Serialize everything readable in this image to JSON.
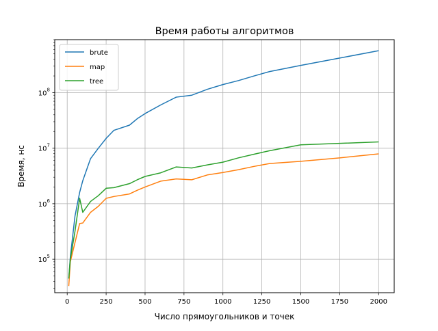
{
  "chart_data": {
    "type": "line",
    "title": "Время работы алгоритмов",
    "xlabel": "Число прямоугольников и точек",
    "ylabel": "Время, нс",
    "yscale": "log",
    "xlim": [
      -80,
      2100
    ],
    "ylim": [
      25000,
      900000000
    ],
    "grid": true,
    "legend_position": "top-left",
    "x_ticks": [
      0,
      250,
      500,
      750,
      1000,
      1250,
      1500,
      1750,
      2000
    ],
    "x_tick_labels": [
      "0",
      "250",
      "500",
      "750",
      "1000",
      "1250",
      "1500",
      "1750",
      "2000"
    ],
    "y_ticks": [
      100000,
      1000000,
      10000000,
      100000000
    ],
    "y_tick_labels": [
      {
        "base": "10",
        "exp": "5"
      },
      {
        "base": "10",
        "exp": "6"
      },
      {
        "base": "10",
        "exp": "7"
      },
      {
        "base": "10",
        "exp": "8"
      }
    ],
    "series": [
      {
        "name": "brute",
        "color": "#1f77b4",
        "points": [
          [
            10,
            45000
          ],
          [
            20,
            110000
          ],
          [
            50,
            600000
          ],
          [
            80,
            1600000
          ],
          [
            100,
            2600000
          ],
          [
            150,
            6500000
          ],
          [
            200,
            10000000
          ],
          [
            250,
            15000000
          ],
          [
            300,
            21000000
          ],
          [
            400,
            26000000
          ],
          [
            450,
            34000000
          ],
          [
            500,
            42000000
          ],
          [
            600,
            60000000
          ],
          [
            700,
            83000000
          ],
          [
            800,
            90000000
          ],
          [
            900,
            115000000
          ],
          [
            1000,
            140000000
          ],
          [
            1100,
            165000000
          ],
          [
            1200,
            200000000
          ],
          [
            1300,
            240000000
          ],
          [
            1500,
            310000000
          ],
          [
            1750,
            420000000
          ],
          [
            2000,
            570000000
          ]
        ]
      },
      {
        "name": "map",
        "color": "#ff7f0e",
        "points": [
          [
            10,
            33000
          ],
          [
            20,
            90000
          ],
          [
            50,
            200000
          ],
          [
            80,
            440000
          ],
          [
            100,
            450000
          ],
          [
            150,
            700000
          ],
          [
            200,
            900000
          ],
          [
            250,
            1250000
          ],
          [
            300,
            1350000
          ],
          [
            400,
            1500000
          ],
          [
            450,
            1750000
          ],
          [
            500,
            2000000
          ],
          [
            600,
            2550000
          ],
          [
            700,
            2800000
          ],
          [
            800,
            2700000
          ],
          [
            900,
            3300000
          ],
          [
            1000,
            3650000
          ],
          [
            1100,
            4100000
          ],
          [
            1200,
            4700000
          ],
          [
            1300,
            5300000
          ],
          [
            1500,
            5800000
          ],
          [
            1750,
            6700000
          ],
          [
            2000,
            7900000
          ]
        ]
      },
      {
        "name": "tree",
        "color": "#2ca02c",
        "points": [
          [
            10,
            45000
          ],
          [
            20,
            100000
          ],
          [
            50,
            320000
          ],
          [
            80,
            1250000
          ],
          [
            100,
            700000
          ],
          [
            150,
            1100000
          ],
          [
            200,
            1400000
          ],
          [
            250,
            1900000
          ],
          [
            300,
            1950000
          ],
          [
            400,
            2300000
          ],
          [
            450,
            2700000
          ],
          [
            500,
            3100000
          ],
          [
            600,
            3600000
          ],
          [
            700,
            4600000
          ],
          [
            800,
            4400000
          ],
          [
            900,
            5000000
          ],
          [
            1000,
            5600000
          ],
          [
            1100,
            6700000
          ],
          [
            1200,
            7800000
          ],
          [
            1300,
            9000000
          ],
          [
            1500,
            11500000
          ],
          [
            1750,
            12200000
          ],
          [
            2000,
            13000000
          ]
        ]
      }
    ]
  }
}
